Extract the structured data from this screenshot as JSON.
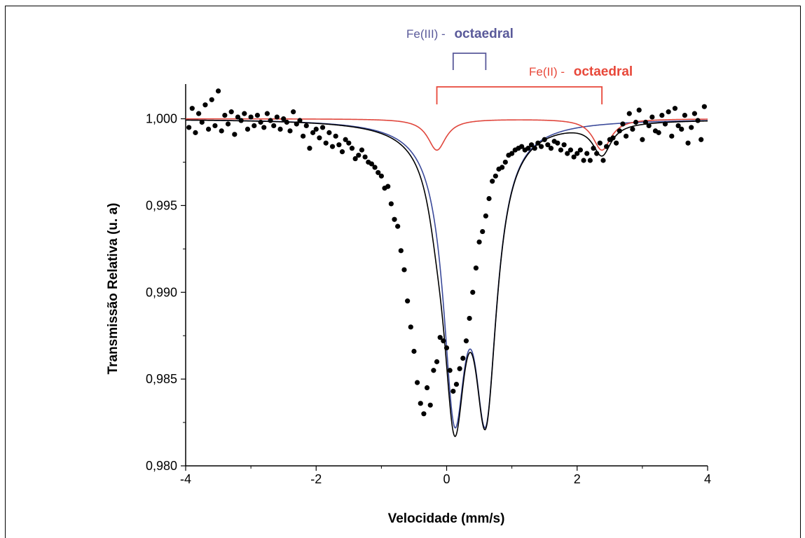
{
  "chart_data": {
    "type": "scatter",
    "xlabel": "Velocidade (mm/s)",
    "ylabel": "Transmissão Relativa (u. a)",
    "xlim": [
      -4,
      4
    ],
    "ylim": [
      0.98,
      1.002
    ],
    "x_ticks": [
      "-4",
      "-2",
      "0",
      "2",
      "4"
    ],
    "x_tick_values": [
      -4,
      -2,
      0,
      2,
      4
    ],
    "y_ticks": [
      "0,980",
      "0,985",
      "0,990",
      "0,995",
      "1,000"
    ],
    "y_tick_values": [
      0.98,
      0.985,
      0.99,
      0.995,
      1.0
    ],
    "grid": false,
    "annotations": [
      {
        "prefix": "Fe(III) - ",
        "label": "octaedral",
        "color": "#5a5a9a",
        "x_from": 0.1,
        "x_to": 0.6
      },
      {
        "prefix": "Fe(II) - ",
        "label": "octaedral",
        "color": "#e8483a",
        "x_from": -0.15,
        "x_to": 2.38
      }
    ],
    "series": [
      {
        "kind": "experimental_points",
        "color": "#000000",
        "x": [
          -3.95,
          -3.9,
          -3.85,
          -3.8,
          -3.75,
          -3.7,
          -3.65,
          -3.6,
          -3.55,
          -3.5,
          -3.45,
          -3.4,
          -3.35,
          -3.3,
          -3.25,
          -3.2,
          -3.15,
          -3.1,
          -3.05,
          -3.0,
          -2.95,
          -2.9,
          -2.85,
          -2.8,
          -2.75,
          -2.7,
          -2.65,
          -2.6,
          -2.55,
          -2.5,
          -2.45,
          -2.4,
          -2.35,
          -2.3,
          -2.25,
          -2.2,
          -2.15,
          -2.1,
          -2.05,
          -2.0,
          -1.95,
          -1.9,
          -1.85,
          -1.8,
          -1.75,
          -1.7,
          -1.65,
          -1.6,
          -1.55,
          -1.5,
          -1.45,
          -1.4,
          -1.35,
          -1.3,
          -1.25,
          -1.2,
          -1.15,
          -1.1,
          -1.05,
          -1.0,
          -0.95,
          -0.9,
          -0.85,
          -0.8,
          -0.75,
          -0.7,
          -0.65,
          -0.6,
          -0.55,
          -0.5,
          -0.45,
          -0.4,
          -0.35,
          -0.3,
          -0.25,
          -0.2,
          -0.15,
          -0.1,
          -0.05,
          0.0,
          0.05,
          0.1,
          0.15,
          0.2,
          0.25,
          0.3,
          0.35,
          0.4,
          0.45,
          0.5,
          0.55,
          0.6,
          0.65,
          0.7,
          0.75,
          0.8,
          0.85,
          0.9,
          0.95,
          1.0,
          1.05,
          1.1,
          1.15,
          1.2,
          1.25,
          1.3,
          1.35,
          1.4,
          1.45,
          1.5,
          1.55,
          1.6,
          1.65,
          1.7,
          1.75,
          1.8,
          1.85,
          1.9,
          1.95,
          2.0,
          2.05,
          2.1,
          2.15,
          2.2,
          2.25,
          2.3,
          2.35,
          2.4,
          2.45,
          2.5,
          2.55,
          2.6,
          2.65,
          2.7,
          2.75,
          2.8,
          2.85,
          2.9,
          2.95,
          3.0,
          3.05,
          3.1,
          3.15,
          3.2,
          3.25,
          3.3,
          3.35,
          3.4,
          3.45,
          3.5,
          3.55,
          3.6,
          3.65,
          3.7,
          3.75,
          3.8,
          3.85,
          3.9,
          3.95
        ],
        "y": [
          0.9995,
          1.0006,
          0.9992,
          1.0003,
          0.9998,
          1.0008,
          0.9994,
          1.0011,
          0.9996,
          1.0016,
          0.9993,
          1.0002,
          0.9997,
          1.0004,
          0.9991,
          1.0001,
          0.9999,
          1.0003,
          0.9994,
          1.0001,
          0.9996,
          1.0002,
          0.9998,
          0.9995,
          1.0003,
          0.9999,
          0.9996,
          1.0001,
          0.9994,
          1.0,
          0.9998,
          0.9993,
          1.0004,
          0.9997,
          0.9999,
          0.999,
          0.9996,
          0.9983,
          0.9992,
          0.9994,
          0.9989,
          0.9995,
          0.9986,
          0.9992,
          0.9984,
          0.999,
          0.9985,
          0.9981,
          0.9988,
          0.9986,
          0.9983,
          0.9977,
          0.9979,
          0.9982,
          0.9978,
          0.9975,
          0.9974,
          0.9972,
          0.9969,
          0.9967,
          0.996,
          0.9961,
          0.9951,
          0.9942,
          0.9938,
          0.9924,
          0.9913,
          0.9895,
          0.988,
          0.9866,
          0.9848,
          0.9836,
          0.983,
          0.9845,
          0.9835,
          0.9855,
          0.986,
          0.9874,
          0.9872,
          0.9868,
          0.9855,
          0.9843,
          0.9847,
          0.9856,
          0.9862,
          0.9872,
          0.9885,
          0.99,
          0.9914,
          0.9929,
          0.9935,
          0.9944,
          0.9954,
          0.9964,
          0.9967,
          0.9971,
          0.9972,
          0.9975,
          0.9979,
          0.998,
          0.9982,
          0.9983,
          0.9984,
          0.9982,
          0.9983,
          0.9985,
          0.9983,
          0.9986,
          0.9984,
          0.9988,
          0.9985,
          0.9983,
          0.9987,
          0.9986,
          0.9982,
          0.9985,
          0.998,
          0.9982,
          0.9978,
          0.998,
          0.9982,
          0.9976,
          0.998,
          0.9976,
          0.9983,
          0.998,
          0.9986,
          0.9976,
          0.9984,
          0.9988,
          0.9989,
          0.9986,
          0.9993,
          0.9997,
          0.999,
          1.0003,
          0.9994,
          0.9998,
          1.0005,
          0.9988,
          0.9998,
          0.9996,
          1.0001,
          0.9993,
          0.9992,
          1.0002,
          0.9997,
          1.0004,
          0.999,
          1.0006,
          0.9996,
          0.9994,
          1.0002,
          0.9986,
          0.9995,
          1.0003,
          0.9999,
          0.9988,
          1.0007
        ]
      },
      {
        "kind": "fit_total",
        "color": "#000000",
        "sites": [
          "Fe(III)",
          "Fe(II)"
        ]
      },
      {
        "kind": "fit_component",
        "color": "#3b4a9a",
        "site": "Fe(III)",
        "peaks_x": [
          0.12,
          0.6
        ],
        "depth": 0.0153,
        "hwhm": 0.21
      },
      {
        "kind": "fit_component",
        "color": "#e0463c",
        "site": "Fe(II)",
        "peaks_x": [
          -0.15,
          2.38
        ],
        "depth": 0.0018,
        "hwhm": 0.17
      }
    ]
  }
}
